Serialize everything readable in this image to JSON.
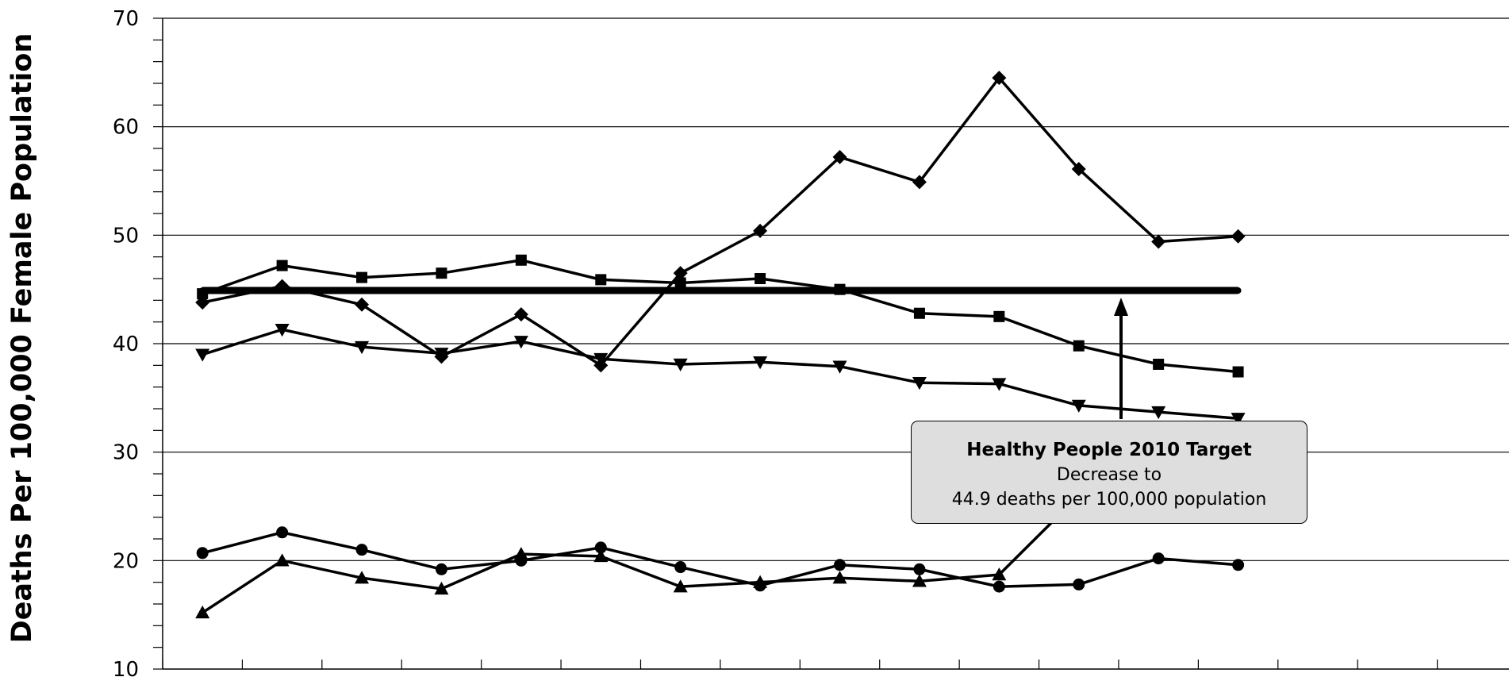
{
  "chart_data": {
    "type": "line",
    "title": "",
    "xlabel": "",
    "ylabel": "Deaths Per 100,000 Female Population",
    "ylim": [
      10,
      70
    ],
    "yticks": [
      "10",
      "20",
      "30",
      "40",
      "50",
      "60",
      "70"
    ],
    "grid": true,
    "x": [
      1,
      2,
      3,
      4,
      5,
      6,
      7,
      8,
      9,
      10,
      11,
      12,
      13,
      14
    ],
    "series": [
      {
        "marker": "diamond",
        "values": [
          43.8,
          45.3,
          43.6,
          38.8,
          42.7,
          38.0,
          46.5,
          50.4,
          57.2,
          54.9,
          64.5,
          56.1,
          49.4,
          49.9
        ]
      },
      {
        "marker": "square",
        "values": [
          44.6,
          47.2,
          46.1,
          46.5,
          47.7,
          45.9,
          45.6,
          46.0,
          45.0,
          42.8,
          42.5,
          39.8,
          38.1,
          37.4
        ]
      },
      {
        "marker": "triangle-down",
        "values": [
          39.0,
          41.3,
          39.7,
          39.1,
          40.2,
          38.6,
          38.1,
          38.3,
          37.9,
          36.4,
          36.3,
          34.3,
          33.7,
          33.1
        ]
      },
      {
        "marker": "triangle-up",
        "values": [
          15.2,
          20.0,
          18.4,
          17.4,
          20.6,
          20.4,
          17.6,
          18.0,
          18.4,
          18.1,
          18.7,
          26.0,
          26.2,
          24.9
        ]
      },
      {
        "marker": "circle",
        "values": [
          20.7,
          22.6,
          21.0,
          19.2,
          20.0,
          21.2,
          19.4,
          17.7,
          19.6,
          19.2,
          17.6,
          17.8,
          20.2,
          19.6
        ]
      },
      {
        "marker": "dot",
        "thick": true,
        "values": [
          44.9,
          44.9,
          44.9,
          44.9,
          44.9,
          44.9,
          44.9,
          44.9,
          44.9,
          44.9,
          44.9,
          44.9,
          44.9,
          44.9
        ]
      }
    ],
    "annotation": {
      "title": "Healthy People 2010 Target",
      "line1": "Decrease to",
      "line2": "44.9 deaths per 100,000 population"
    }
  }
}
